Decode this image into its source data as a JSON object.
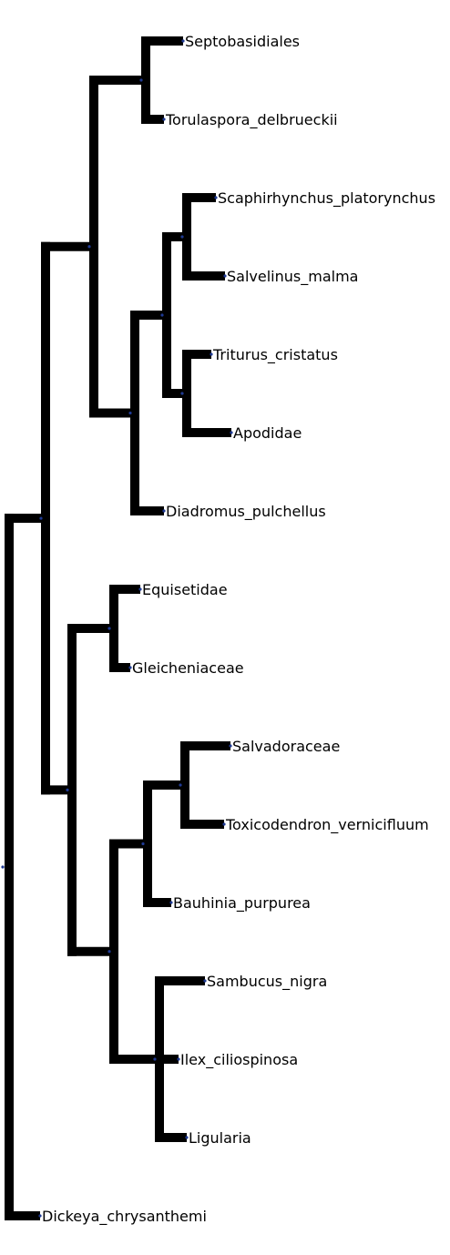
{
  "tree": {
    "leaves": [
      "Septobasidiales",
      "Torulaspora_delbrueckii",
      "Scaphirhynchus_platorynchus",
      "Salvelinus_malma",
      "Triturus_cristatus",
      "Apodidae",
      "Diadromus_pulchellus",
      "Equisetidae",
      "Gleicheniaceae",
      "Salvadoraceae",
      "Toxicodendron_vernicifluum",
      "Bauhinia_purpurea",
      "Sambucus_nigra",
      "Ilex_ciliospinosa",
      "Ligularia",
      "Dickeya_chrysanthemi"
    ],
    "colors": {
      "branch": "#000000",
      "node": "#1f3a93"
    }
  }
}
